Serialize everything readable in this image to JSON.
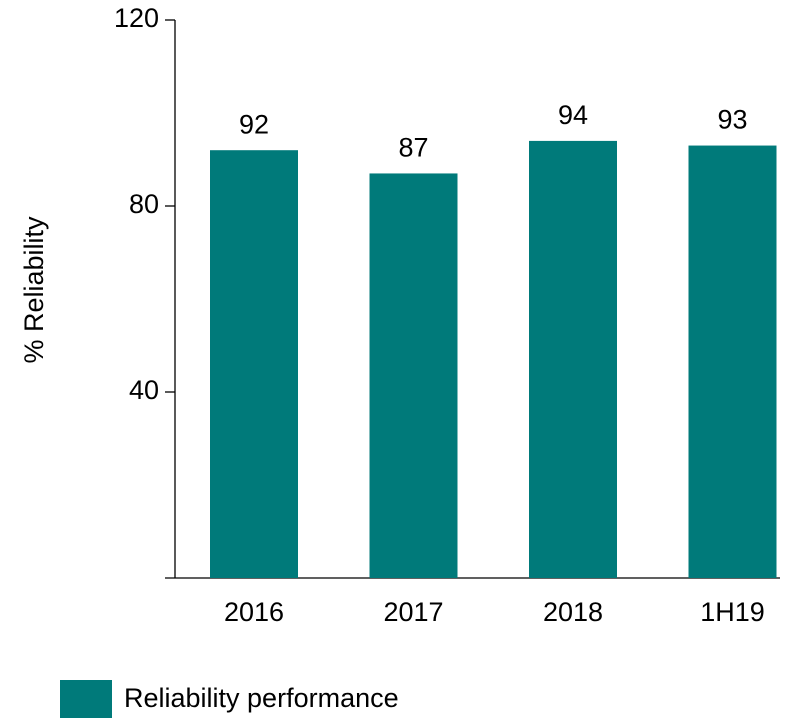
{
  "chart_data": {
    "type": "bar",
    "ylabel": "% Reliability",
    "categories": [
      "2016",
      "2017",
      "2018",
      "1H19"
    ],
    "series": [
      {
        "name": "Reliability performance",
        "color": "#007a7a",
        "values": [
          92,
          87,
          94,
          93
        ]
      }
    ],
    "ylim": [
      0,
      120
    ],
    "yticks": [
      40,
      80,
      120
    ],
    "grid": false,
    "legend": "bottom-left"
  }
}
